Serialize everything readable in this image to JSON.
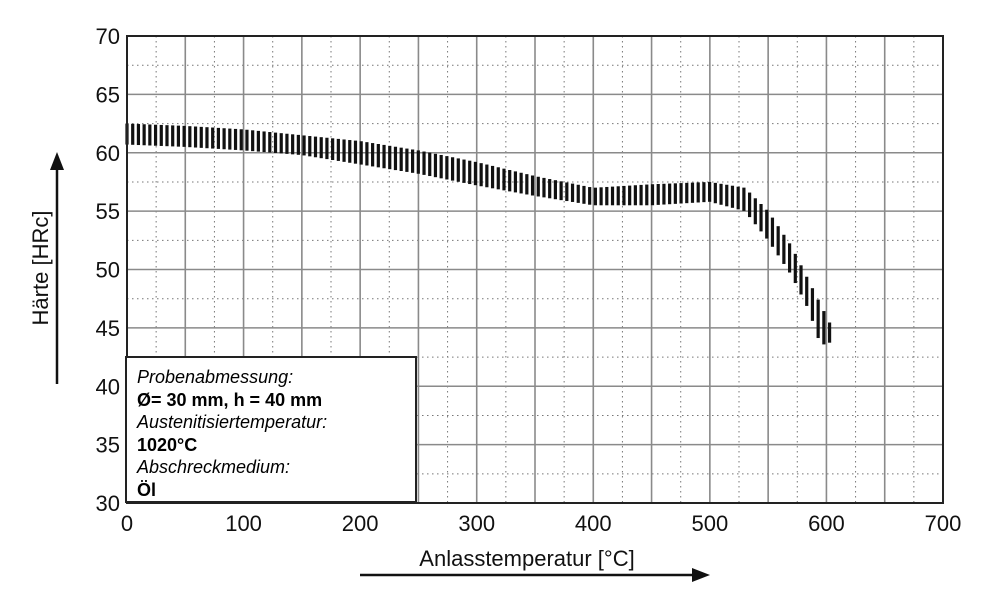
{
  "chart_data": {
    "type": "area",
    "xlabel": "Anlasstemperatur [°C]",
    "ylabel": "Härte [HRc]",
    "xlim": [
      0,
      700
    ],
    "ylim": [
      30,
      70
    ],
    "x_ticks": [
      "0",
      "100",
      "200",
      "300",
      "400",
      "500",
      "600",
      "700"
    ],
    "y_ticks": [
      "30",
      "35",
      "40",
      "45",
      "50",
      "55",
      "60",
      "65",
      "70"
    ],
    "grid": true,
    "band": {
      "x": [
        0,
        50,
        100,
        150,
        200,
        250,
        300,
        350,
        400,
        450,
        500,
        530,
        550,
        570,
        585,
        595,
        605
      ],
      "upper": [
        62.5,
        62.3,
        62.0,
        61.5,
        61.0,
        60.2,
        59.2,
        58.0,
        57.0,
        57.3,
        57.5,
        57.0,
        55.0,
        52.0,
        49.0,
        47.0,
        45.0
      ],
      "lower": [
        60.7,
        60.5,
        60.2,
        59.8,
        59.0,
        58.2,
        57.2,
        56.3,
        55.5,
        55.5,
        55.8,
        55.0,
        52.5,
        49.5,
        46.5,
        43.5,
        43.8
      ]
    }
  },
  "legend_box": {
    "label1": "Probenabmessung:",
    "diameter_symbol": "Ø",
    "value1": "= 30 mm, h = 40 mm",
    "label2": "Austenitisiertemperatur:",
    "value2": "1020°C",
    "label3": "Abschreckmedium:",
    "value3": "Öl"
  }
}
